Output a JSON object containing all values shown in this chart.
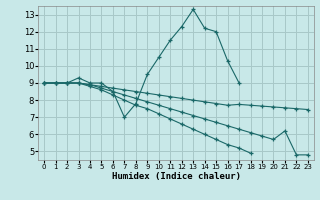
{
  "xlabel": "Humidex (Indice chaleur)",
  "bg_color": "#c8e8e8",
  "grid_color": "#a8c8c8",
  "line_color": "#1a6868",
  "xlim": [
    -0.5,
    23.5
  ],
  "ylim": [
    4.5,
    13.5
  ],
  "xticks": [
    0,
    1,
    2,
    3,
    4,
    5,
    6,
    7,
    8,
    9,
    10,
    11,
    12,
    13,
    14,
    15,
    16,
    17,
    18,
    19,
    20,
    21,
    22,
    23
  ],
  "yticks": [
    5,
    6,
    7,
    8,
    9,
    10,
    11,
    12,
    13
  ],
  "lines": [
    {
      "x": [
        0,
        1,
        2,
        3,
        4,
        5,
        6,
        7,
        8,
        9,
        10,
        11,
        12,
        13,
        14,
        15,
        16,
        17,
        18,
        19
      ],
      "y": [
        9,
        9,
        9,
        9.3,
        9,
        9,
        8.5,
        7,
        7.8,
        9.5,
        10.5,
        11.5,
        12.3,
        13.3,
        12.2,
        12,
        10.3,
        9,
        null,
        null
      ]
    },
    {
      "x": [
        0,
        1,
        2,
        3,
        4,
        5,
        6,
        7,
        8,
        9,
        10,
        11,
        12,
        13,
        14,
        15,
        16,
        17,
        18,
        19,
        20,
        21,
        22,
        23
      ],
      "y": [
        9,
        9,
        9,
        9,
        8.9,
        8.8,
        8.7,
        8.6,
        8.5,
        8.4,
        8.3,
        8.2,
        8.1,
        8.0,
        7.9,
        7.8,
        7.7,
        7.75,
        7.7,
        7.65,
        7.6,
        7.55,
        7.5,
        7.45
      ]
    },
    {
      "x": [
        0,
        1,
        2,
        3,
        4,
        5,
        6,
        7,
        8,
        9,
        10,
        11,
        12,
        13,
        14,
        15,
        16,
        17,
        18,
        19,
        20,
        21,
        22,
        23
      ],
      "y": [
        9,
        9,
        9,
        9,
        8.9,
        8.7,
        8.5,
        8.3,
        8.1,
        7.9,
        7.7,
        7.5,
        7.3,
        7.1,
        6.9,
        6.7,
        6.5,
        6.3,
        6.1,
        5.9,
        5.7,
        6.2,
        4.8,
        4.8
      ]
    },
    {
      "x": [
        0,
        1,
        2,
        3,
        4,
        5,
        6,
        7,
        8,
        9,
        10,
        11,
        12,
        13,
        14,
        15,
        16,
        17,
        18,
        19,
        20,
        21,
        22,
        23
      ],
      "y": [
        9,
        9,
        9,
        9,
        8.8,
        8.6,
        8.3,
        8.0,
        7.7,
        7.5,
        7.2,
        6.9,
        6.6,
        6.3,
        6.0,
        5.7,
        5.4,
        5.2,
        4.9,
        null,
        null,
        null,
        null,
        null
      ]
    }
  ]
}
